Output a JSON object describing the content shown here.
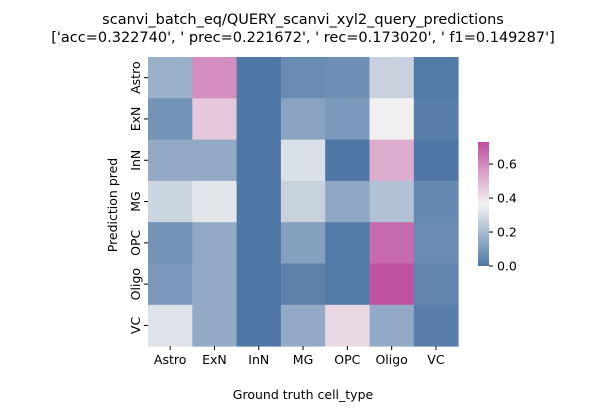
{
  "chart_data": {
    "type": "heatmap",
    "title_line1": "scanvi_batch_eq/QUERY_scanvi_xyl2_query_predictions",
    "title_line2": "['acc=0.322740', ' prec=0.221672', ' rec=0.173020', ' f1=0.149287']",
    "xlabel": "Ground truth cell_type",
    "ylabel": "Prediction pred",
    "x_categories": [
      "Astro",
      "ExN",
      "InN",
      "MG",
      "OPC",
      "Oligo",
      "VC"
    ],
    "y_categories": [
      "Astro",
      "ExN",
      "InN",
      "MG",
      "OPC",
      "Oligo",
      "VC"
    ],
    "values": [
      [
        0.17,
        0.59,
        0.0,
        0.06,
        0.07,
        0.27,
        0.01
      ],
      [
        0.08,
        0.46,
        0.0,
        0.13,
        0.1,
        0.37,
        0.02
      ],
      [
        0.15,
        0.15,
        0.0,
        0.31,
        0.0,
        0.52,
        0.0
      ],
      [
        0.28,
        0.33,
        0.0,
        0.27,
        0.14,
        0.22,
        0.05
      ],
      [
        0.08,
        0.15,
        0.0,
        0.12,
        0.01,
        0.67,
        0.06
      ],
      [
        0.1,
        0.15,
        0.0,
        0.03,
        0.01,
        0.72,
        0.04
      ],
      [
        0.32,
        0.15,
        0.0,
        0.15,
        0.42,
        0.15,
        0.02
      ]
    ],
    "colorbar": {
      "vmin": 0.0,
      "vmax": 0.73,
      "ticks": [
        0.0,
        0.2,
        0.4,
        0.6
      ],
      "tick_labels": [
        "0.0",
        "0.2",
        "0.4",
        "0.6"
      ]
    },
    "colormap": {
      "low": "#4f78a6",
      "mid": "#f2f2f2",
      "high": "#bf4f9f"
    }
  }
}
